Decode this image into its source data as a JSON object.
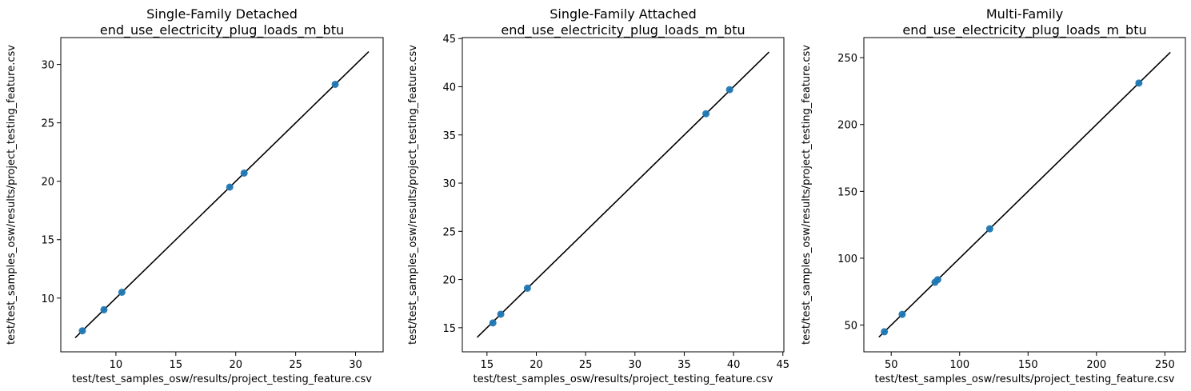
{
  "chart_data": [
    {
      "type": "scatter",
      "title": "Single-Family Detached\nend_use_electricity_plug_loads_m_btu",
      "xlabel": "test/test_samples_osw/results/project_testing_feature.csv",
      "ylabel": "test/test_samples_osw/results/project_testing_feature.csv",
      "xlim": [
        5.4,
        32.3
      ],
      "ylim": [
        5.4,
        32.3
      ],
      "xticks": [
        10,
        15,
        20,
        25,
        30
      ],
      "yticks": [
        10,
        15,
        20,
        25,
        30
      ],
      "points": [
        [
          7.2,
          7.2
        ],
        [
          9.0,
          9.0
        ],
        [
          10.5,
          10.5
        ],
        [
          19.5,
          19.5
        ],
        [
          20.7,
          20.7
        ],
        [
          28.3,
          28.3
        ]
      ],
      "reference_line": [
        6.6,
        31.1
      ],
      "point_color": "#1f77b4",
      "line_color": "#000000",
      "grid": false
    },
    {
      "type": "scatter",
      "title": "Single-Family Attached\nend_use_electricity_plug_loads_m_btu",
      "xlabel": "test/test_samples_osw/results/project_testing_feature.csv",
      "ylabel": "test/test_samples_osw/results/project_testing_feature.csv",
      "xlim": [
        12.5,
        45.1
      ],
      "ylim": [
        12.5,
        45.1
      ],
      "xticks": [
        15,
        20,
        25,
        30,
        35,
        40,
        45
      ],
      "yticks": [
        15,
        20,
        25,
        30,
        35,
        40,
        45
      ],
      "points": [
        [
          15.6,
          15.5
        ],
        [
          16.4,
          16.4
        ],
        [
          19.1,
          19.1
        ],
        [
          37.2,
          37.2
        ],
        [
          39.6,
          39.7
        ]
      ],
      "reference_line": [
        14.0,
        43.6
      ],
      "point_color": "#1f77b4",
      "line_color": "#000000",
      "grid": false
    },
    {
      "type": "scatter",
      "title": "Multi-Family\nend_use_electricity_plug_loads_m_btu",
      "xlabel": "test/test_samples_osw/results/project_testing_feature.csv",
      "ylabel": "test/test_samples_osw/results/project_testing_feature.csv",
      "xlim": [
        30,
        265
      ],
      "ylim": [
        30,
        265
      ],
      "xticks": [
        50,
        100,
        150,
        200,
        250
      ],
      "yticks": [
        50,
        100,
        150,
        200,
        250
      ],
      "points": [
        [
          45,
          45
        ],
        [
          58,
          58
        ],
        [
          82,
          82
        ],
        [
          84,
          84
        ],
        [
          122,
          122
        ],
        [
          231,
          231
        ]
      ],
      "reference_line": [
        41,
        254
      ],
      "point_color": "#1f77b4",
      "line_color": "#000000",
      "grid": false
    }
  ]
}
